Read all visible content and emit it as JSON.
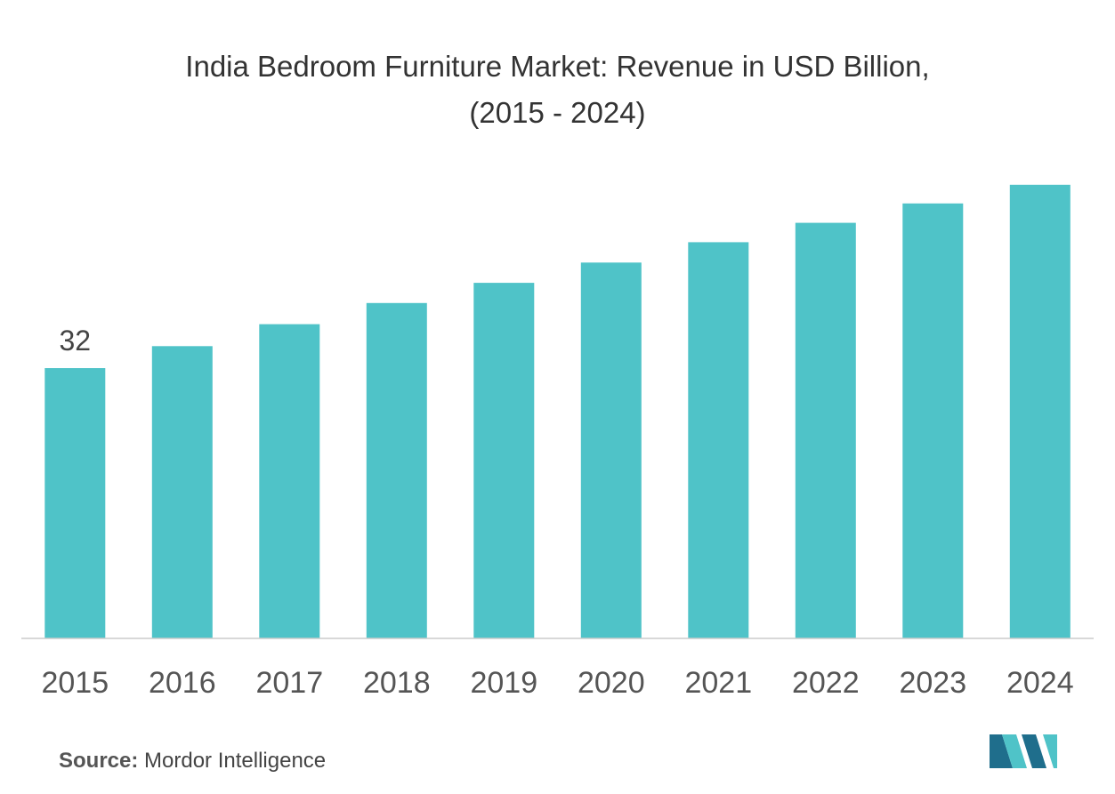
{
  "chart_data": {
    "type": "bar",
    "title_line_1": "India Bedroom Furniture Market: Revenue in USD Billion,",
    "title_line_2": "(2015 - 2024)",
    "xlabel": "",
    "ylabel": "",
    "categories": [
      "2015",
      "2016",
      "2017",
      "2018",
      "2019",
      "2020",
      "2021",
      "2022",
      "2023",
      "2024"
    ],
    "values": [
      32,
      34.6,
      37.2,
      39.7,
      42.1,
      44.5,
      46.9,
      49.2,
      51.5,
      53.7
    ],
    "data_labels": [
      {
        "category": "2015",
        "text": "32"
      }
    ],
    "ylim": [
      0,
      56
    ],
    "grid": false,
    "legend": "none",
    "colors": {
      "bar": "#4FC3C8",
      "axis": "#cccccc",
      "text": "#555555"
    }
  },
  "source": {
    "label": "Source:",
    "value": "Mordor Intelligence"
  },
  "logo": {
    "icon": "mordor-intelligence-logo-icon",
    "colors": [
      "#1F6E8C",
      "#4FC3C8"
    ]
  }
}
